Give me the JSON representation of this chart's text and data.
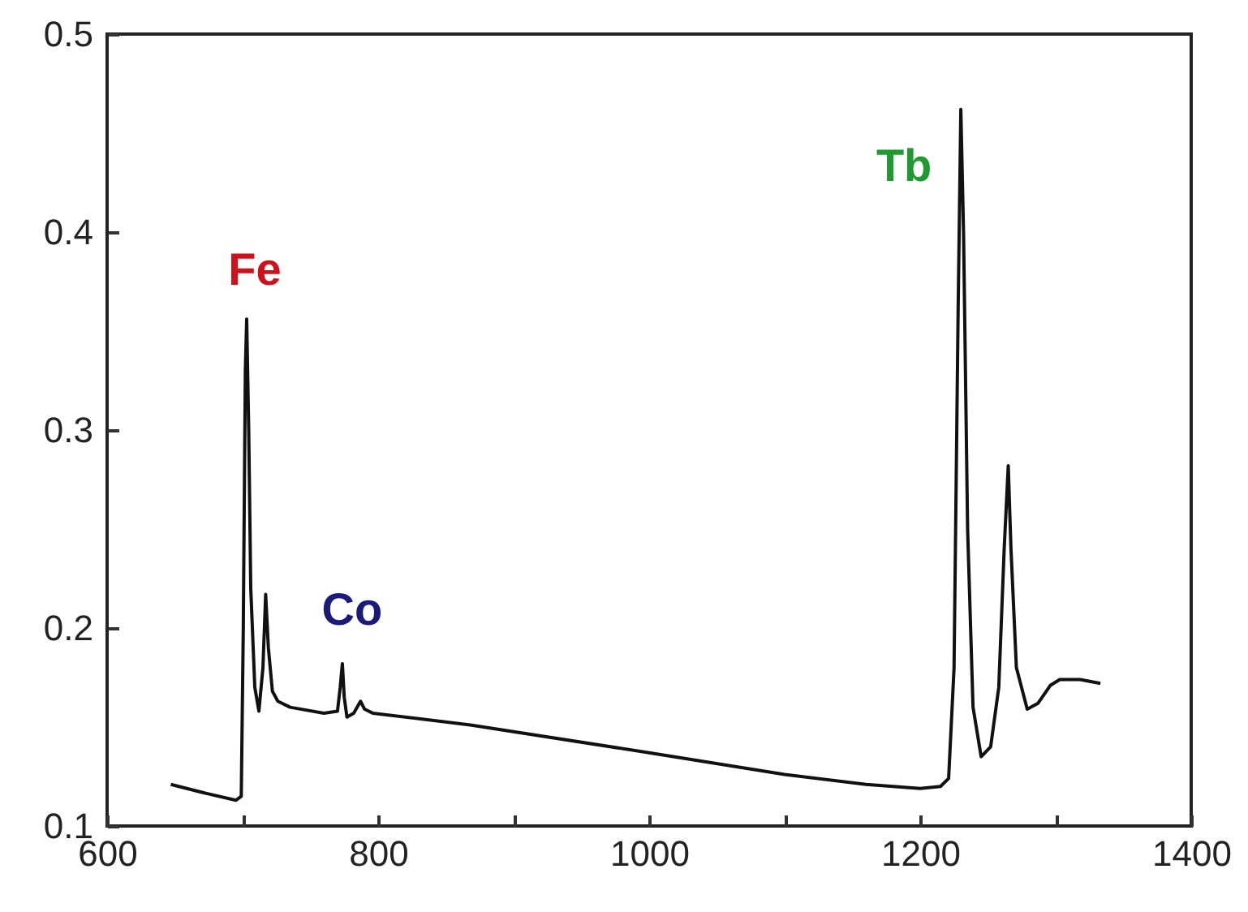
{
  "chart_data": {
    "type": "line",
    "x": [
      647,
      670,
      695,
      699,
      700.5,
      702,
      703,
      704.5,
      706,
      709,
      712,
      715,
      717,
      719,
      722,
      726,
      735,
      760,
      770,
      772,
      773.6,
      775,
      777,
      782,
      787,
      790,
      796,
      868,
      1000,
      1100,
      1160,
      1200,
      1215,
      1221,
      1225,
      1228,
      1230,
      1232,
      1235,
      1239,
      1245,
      1252,
      1258,
      1262,
      1265,
      1267,
      1271,
      1279,
      1287,
      1296,
      1303,
      1318,
      1333
    ],
    "series": [
      {
        "color": "#111111",
        "values": [
          0.121,
          0.117,
          0.113,
          0.115,
          0.2,
          0.33,
          0.356,
          0.3,
          0.22,
          0.17,
          0.158,
          0.18,
          0.217,
          0.19,
          0.168,
          0.163,
          0.16,
          0.157,
          0.158,
          0.17,
          0.182,
          0.165,
          0.155,
          0.157,
          0.163,
          0.159,
          0.157,
          0.151,
          0.137,
          0.126,
          0.121,
          0.119,
          0.12,
          0.124,
          0.18,
          0.36,
          0.462,
          0.4,
          0.25,
          0.16,
          0.135,
          0.14,
          0.17,
          0.24,
          0.282,
          0.24,
          0.18,
          0.159,
          0.162,
          0.171,
          0.174,
          0.174,
          0.172
        ]
      }
    ],
    "xlim": [
      600,
      1400
    ],
    "xticks": [
      600,
      {
        "value": 700,
        "label": null
      },
      800,
      {
        "value": 900,
        "label": null
      },
      1000,
      {
        "value": 1100,
        "label": null
      },
      1200,
      {
        "value": 1300,
        "label": null
      },
      1400
    ],
    "ylim": [
      0.1,
      0.5
    ],
    "yticks": [
      0.1,
      0.2,
      0.3,
      0.4,
      0.5
    ],
    "annotations": [
      {
        "text": "Fe",
        "x": 703,
        "y": 0.356
      },
      {
        "text": "Co",
        "x": 773.6,
        "y": 0.182
      },
      {
        "text": "Tb",
        "x": 1230,
        "y": 0.462
      }
    ]
  }
}
